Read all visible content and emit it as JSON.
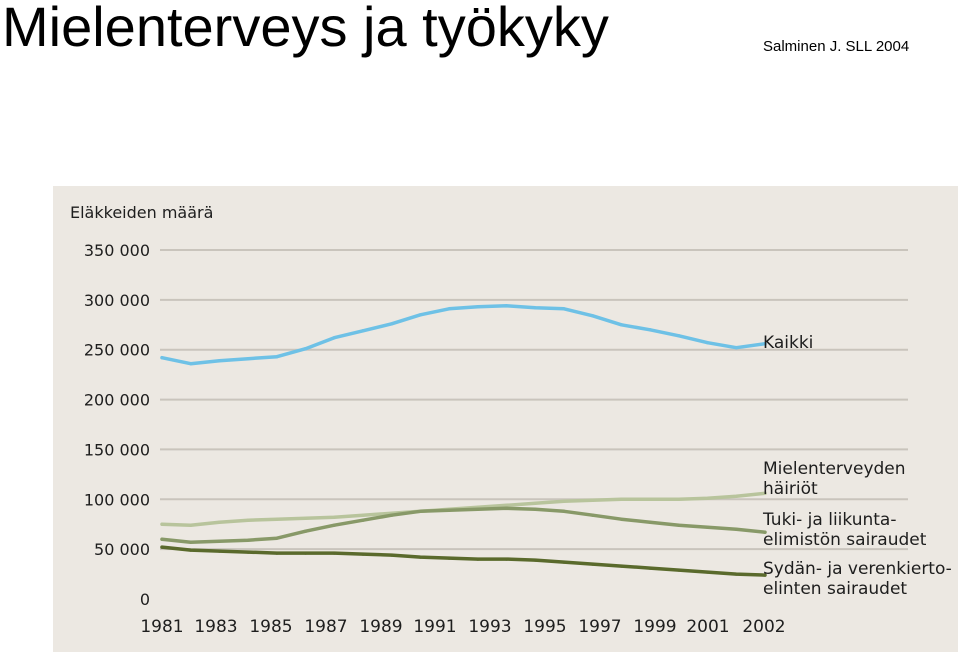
{
  "slide": {
    "title": "Mielenterveys ja työkyky",
    "source": "Salminen J. SLL 2004"
  },
  "chart_data": {
    "type": "line",
    "ylabel": "Eläkkeiden määrä",
    "ylim": [
      0,
      350000
    ],
    "y_ticks": [
      {
        "value": 350000,
        "label": "350 000"
      },
      {
        "value": 300000,
        "label": "300 000"
      },
      {
        "value": 250000,
        "label": "250 000"
      },
      {
        "value": 200000,
        "label": "200 000"
      },
      {
        "value": 150000,
        "label": "150 000"
      },
      {
        "value": 100000,
        "label": "100 000"
      },
      {
        "value": 50000,
        "label": "50 000"
      },
      {
        "value": 0,
        "label": "0"
      }
    ],
    "x_ticks": [
      "1981",
      "1983",
      "1985",
      "1987",
      "1989",
      "1991",
      "1993",
      "1995",
      "1997",
      "1999",
      "2001",
      "2002"
    ],
    "x": [
      1981,
      1982,
      1983,
      1984,
      1985,
      1986,
      1987,
      1988,
      1989,
      1990,
      1991,
      1992,
      1993,
      1994,
      1995,
      1996,
      1997,
      1998,
      1999,
      2000,
      2001,
      2002
    ],
    "grid": true,
    "series": [
      {
        "key": "kaikki",
        "name": "Kaikki",
        "color": "#6ec1e6",
        "values": [
          242000,
          236000,
          239000,
          241000,
          243000,
          251000,
          262000,
          269000,
          276000,
          285000,
          291000,
          293000,
          294000,
          292000,
          291000,
          284000,
          275000,
          270000,
          264000,
          257000,
          252000,
          256000
        ]
      },
      {
        "key": "mielenterveys",
        "name": "Mielenterveyden häiriöt",
        "name_lines": [
          "Mielenterveyden",
          "häiriöt"
        ],
        "color": "#b8c49c",
        "values": [
          75000,
          74000,
          77000,
          79000,
          80000,
          81000,
          82000,
          84000,
          86000,
          88000,
          90000,
          92000,
          94000,
          96000,
          98000,
          99000,
          100000,
          100000,
          100000,
          101000,
          103000,
          106000
        ]
      },
      {
        "key": "tuki",
        "name": "Tuki- ja liikuntaelimistön sairaudet",
        "name_lines": [
          "Tuki- ja liikunta-",
          "elimistön sairaudet"
        ],
        "color": "#889968",
        "values": [
          60000,
          57000,
          58000,
          59000,
          61000,
          68000,
          74000,
          79000,
          84000,
          88000,
          89000,
          90000,
          91000,
          90000,
          88000,
          84000,
          80000,
          77000,
          74000,
          72000,
          70000,
          67000
        ]
      },
      {
        "key": "sydan",
        "name": "Sydän- ja verenkiertoelinten sairaudet",
        "name_lines": [
          "Sydän- ja verenkierto-",
          "elinten sairaudet"
        ],
        "color": "#5a6a2c",
        "values": [
          52000,
          49000,
          48000,
          47000,
          46000,
          46000,
          46000,
          45000,
          44000,
          42000,
          41000,
          40000,
          40000,
          39000,
          37000,
          35000,
          33000,
          31000,
          29000,
          27000,
          25000,
          24000
        ]
      }
    ]
  }
}
